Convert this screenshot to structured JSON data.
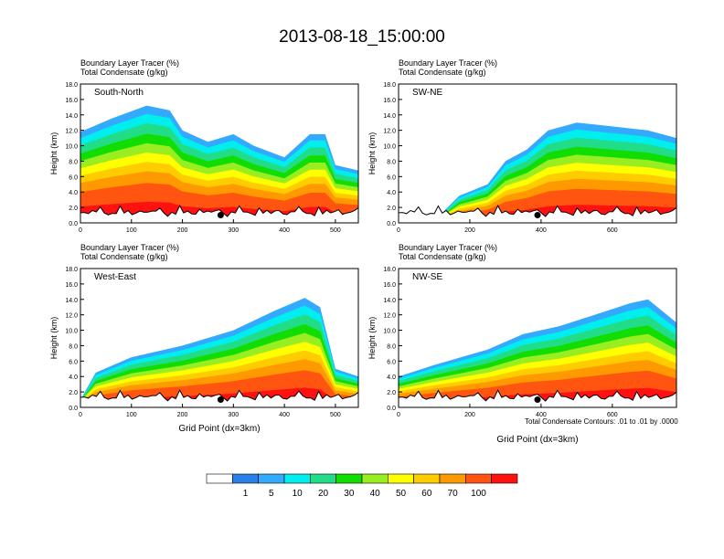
{
  "title": "2013-08-18_15:00:00",
  "footnote": "Total Condensate Contours: .01 to .01 by .0000",
  "colorbar": {
    "colors": [
      "#ffffff",
      "#2b7fe8",
      "#33aaff",
      "#00eeee",
      "#22dd88",
      "#11dd00",
      "#99ee22",
      "#ffff00",
      "#ffcc00",
      "#ff9900",
      "#ff5511",
      "#ff1111"
    ],
    "labels": [
      "1",
      "5",
      "10",
      "20",
      "30",
      "40",
      "50",
      "60",
      "70",
      "100"
    ]
  },
  "chart_data": [
    {
      "type": "contour",
      "label": "South-North",
      "title_lines": [
        "Boundary Layer Tracer   (%)",
        "Total Condensate   (g/kg)"
      ],
      "ylabel": "Height (km)",
      "xlabel": "",
      "ylim": [
        0,
        18
      ],
      "xlim": [
        0,
        545
      ],
      "yticks": [
        "0.0",
        "2.0",
        "4.0",
        "6.0",
        "8.0",
        "10.0",
        "12.0",
        "14.0",
        "16.0",
        "18.0"
      ],
      "xticks": [
        0,
        100,
        200,
        300,
        400,
        500
      ],
      "marker_x": 275,
      "profile": [
        {
          "x": 0,
          "top": 11.8
        },
        {
          "x": 60,
          "top": 13.5
        },
        {
          "x": 130,
          "top": 15.2
        },
        {
          "x": 175,
          "top": 14.6
        },
        {
          "x": 200,
          "top": 12.0
        },
        {
          "x": 250,
          "top": 10.5
        },
        {
          "x": 300,
          "top": 11.5
        },
        {
          "x": 340,
          "top": 10.0
        },
        {
          "x": 400,
          "top": 8.5
        },
        {
          "x": 450,
          "top": 11.5
        },
        {
          "x": 480,
          "top": 11.5
        },
        {
          "x": 500,
          "top": 7.5
        },
        {
          "x": 545,
          "top": 6.8
        }
      ]
    },
    {
      "type": "contour",
      "label": "SW-NE",
      "title_lines": [
        "Boundary Layer Tracer   (%)",
        "Total Condensate   (g/kg)"
      ],
      "ylabel": "Height (km)",
      "xlabel": "",
      "ylim": [
        0,
        18
      ],
      "xlim": [
        0,
        780
      ],
      "yticks": [
        "0.0",
        "2.0",
        "4.0",
        "6.0",
        "8.0",
        "10.0",
        "12.0",
        "14.0",
        "16.0",
        "18.0"
      ],
      "xticks": [
        0,
        200,
        400,
        600
      ],
      "marker_x": 390,
      "profile": [
        {
          "x": 0,
          "top": 1.0
        },
        {
          "x": 120,
          "top": 1.2
        },
        {
          "x": 170,
          "top": 3.5
        },
        {
          "x": 250,
          "top": 5.0
        },
        {
          "x": 300,
          "top": 8.0
        },
        {
          "x": 360,
          "top": 9.5
        },
        {
          "x": 420,
          "top": 12.0
        },
        {
          "x": 500,
          "top": 13.0
        },
        {
          "x": 600,
          "top": 12.5
        },
        {
          "x": 700,
          "top": 12.0
        },
        {
          "x": 780,
          "top": 11.0
        }
      ]
    },
    {
      "type": "contour",
      "label": "West-East",
      "title_lines": [
        "Boundary Layer Tracer   (%)",
        "Total Condensate   (g/kg)"
      ],
      "ylabel": "Height (km)",
      "xlabel": "Grid Point (dx=3km)",
      "ylim": [
        0,
        18
      ],
      "xlim": [
        0,
        545
      ],
      "yticks": [
        "0.0",
        "2.0",
        "4.0",
        "6.0",
        "8.0",
        "10.0",
        "12.0",
        "14.0",
        "16.0",
        "18.0"
      ],
      "xticks": [
        0,
        100,
        200,
        300,
        400,
        500
      ],
      "marker_x": 275,
      "profile": [
        {
          "x": 0,
          "top": 1.0
        },
        {
          "x": 30,
          "top": 4.5
        },
        {
          "x": 100,
          "top": 6.5
        },
        {
          "x": 200,
          "top": 8.0
        },
        {
          "x": 300,
          "top": 10.0
        },
        {
          "x": 380,
          "top": 12.5
        },
        {
          "x": 440,
          "top": 14.2
        },
        {
          "x": 470,
          "top": 13.0
        },
        {
          "x": 500,
          "top": 5.0
        },
        {
          "x": 545,
          "top": 4.0
        }
      ]
    },
    {
      "type": "contour",
      "label": "NW-SE",
      "title_lines": [
        "Boundary Layer Tracer   (%)",
        "Total Condensate   (g/kg)"
      ],
      "ylabel": "Height (km)",
      "xlabel": "Grid Point (dx=3km)",
      "ylim": [
        0,
        18
      ],
      "xlim": [
        0,
        780
      ],
      "yticks": [
        "0.0",
        "2.0",
        "4.0",
        "6.0",
        "8.0",
        "10.0",
        "12.0",
        "14.0",
        "16.0",
        "18.0"
      ],
      "xticks": [
        0,
        200,
        400,
        600
      ],
      "marker_x": 390,
      "profile": [
        {
          "x": 0,
          "top": 4.0
        },
        {
          "x": 100,
          "top": 5.5
        },
        {
          "x": 250,
          "top": 7.5
        },
        {
          "x": 350,
          "top": 9.5
        },
        {
          "x": 450,
          "top": 10.5
        },
        {
          "x": 550,
          "top": 12.0
        },
        {
          "x": 650,
          "top": 13.5
        },
        {
          "x": 700,
          "top": 14.0
        },
        {
          "x": 780,
          "top": 11.0
        }
      ]
    }
  ]
}
